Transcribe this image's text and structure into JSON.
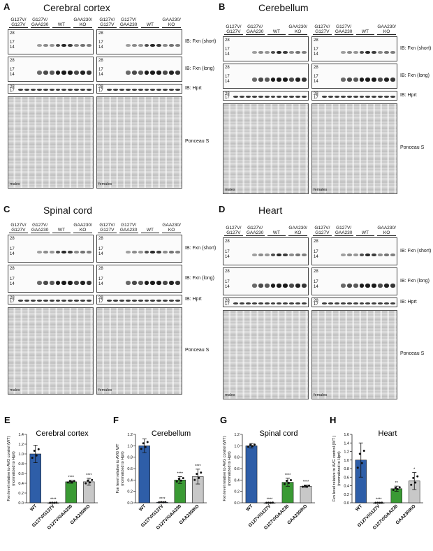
{
  "panels": [
    {
      "letter": "A",
      "title": "Cerebral cortex",
      "sex_left": "males",
      "sex_right": "females",
      "intensity": [
        0,
        0.25,
        0.55,
        0.7,
        0.9,
        0.35
      ]
    },
    {
      "letter": "B",
      "title": "Cerebellum",
      "sex_left": "males",
      "sex_right": "females",
      "intensity": [
        0,
        0.55,
        0.6,
        0.8,
        0.85,
        0.7
      ]
    },
    {
      "letter": "C",
      "title": "Spinal cord",
      "sex_left": "males",
      "sex_right": "females",
      "intensity": [
        0,
        0.3,
        0.45,
        0.7,
        0.85,
        0.35
      ]
    },
    {
      "letter": "D",
      "title": "Heart",
      "sex_left": "males",
      "sex_right": "females",
      "intensity": [
        0,
        0.3,
        0.4,
        0.85,
        0.95,
        0.45
      ]
    }
  ],
  "blot": {
    "lane_groups": [
      "G127V/ G127V",
      "G127V/ GAA230",
      "WT",
      "GAA230/ KO"
    ],
    "ib_short": "IB: Fxn (short)",
    "ib_long": "IB: Fxn (long)",
    "ib_hprt": "IB: Hprt",
    "ponceau": "Ponceau S",
    "mw_28": "28",
    "mw_17": "17",
    "mw_14": "14"
  },
  "chart_data": [
    {
      "letter": "E",
      "type": "bar",
      "title": "Cerebral cortex",
      "ylabel": "Fxn level relative to AVG control (WT) (normalized to Hprt)",
      "categories": [
        "WT",
        "G127V/G127V",
        "G127V/GAA230",
        "GAA230/KO"
      ],
      "values": [
        1.0,
        0.0,
        0.43,
        0.43
      ],
      "errors": [
        0.18,
        0.005,
        0.03,
        0.07
      ],
      "sig": [
        "",
        "****",
        "****",
        "****"
      ],
      "colors": [
        "#2e5ea8",
        "#2e5ea8",
        "#3a9a34",
        "#c8c8c8"
      ],
      "ylim": [
        0,
        1.4
      ],
      "yticks": [
        "0.0",
        "0.2",
        "0.4",
        "0.6",
        "0.8",
        "1.0",
        "1.2",
        "1.4"
      ]
    },
    {
      "letter": "F",
      "type": "bar",
      "title": "Cerebellum",
      "ylabel": "Fxn level relative to AVG WT (normalized to Hprt)",
      "categories": [
        "WT",
        "G127V/G127V",
        "G127V/GAA230",
        "GAA230/KO"
      ],
      "values": [
        1.0,
        0.01,
        0.4,
        0.46
      ],
      "errors": [
        0.12,
        0.005,
        0.06,
        0.13
      ],
      "sig": [
        "",
        "****",
        "****",
        "****"
      ],
      "colors": [
        "#2e5ea8",
        "#2e5ea8",
        "#3a9a34",
        "#c8c8c8"
      ],
      "ylim": [
        0,
        1.2
      ],
      "yticks": [
        "0.0",
        "0.2",
        "0.4",
        "0.6",
        "0.8",
        "1.0",
        "1.2"
      ]
    },
    {
      "letter": "G",
      "type": "bar",
      "title": "Spinal cord",
      "ylabel": "Fxn level relative to AVG control (WT) (normalized to Hprt)",
      "categories": [
        "WT",
        "G127V/G127V",
        "G127V/GAA230",
        "GAA230/KO"
      ],
      "values": [
        1.0,
        0.0,
        0.36,
        0.29
      ],
      "errors": [
        0.04,
        0.005,
        0.07,
        0.02
      ],
      "sig": [
        "",
        "****",
        "****",
        "****"
      ],
      "colors": [
        "#2e5ea8",
        "#2e5ea8",
        "#3a9a34",
        "#c8c8c8"
      ],
      "ylim": [
        0,
        1.2
      ],
      "yticks": [
        "0.0",
        "0.2",
        "0.4",
        "0.6",
        "0.8",
        "1.0",
        "1.2"
      ]
    },
    {
      "letter": "H",
      "type": "bar",
      "title": "Heart",
      "ylabel": "Fxn level relative to AVG control (WT ) (normalized to Hprt)",
      "categories": [
        "WT",
        "G127V/G127V",
        "G127V/GAA230",
        "GAA230/KO"
      ],
      "values": [
        1.0,
        0.0,
        0.33,
        0.51
      ],
      "errors": [
        0.4,
        0.005,
        0.06,
        0.2
      ],
      "sig": [
        "",
        "****",
        "**",
        "*"
      ],
      "colors": [
        "#2e5ea8",
        "#2e5ea8",
        "#3a9a34",
        "#c8c8c8"
      ],
      "ylim": [
        0,
        1.6
      ],
      "yticks": [
        "0.0",
        "0.2",
        "0.4",
        "0.6",
        "0.8",
        "1.0",
        "1.2",
        "1.4",
        "1.6"
      ]
    }
  ]
}
